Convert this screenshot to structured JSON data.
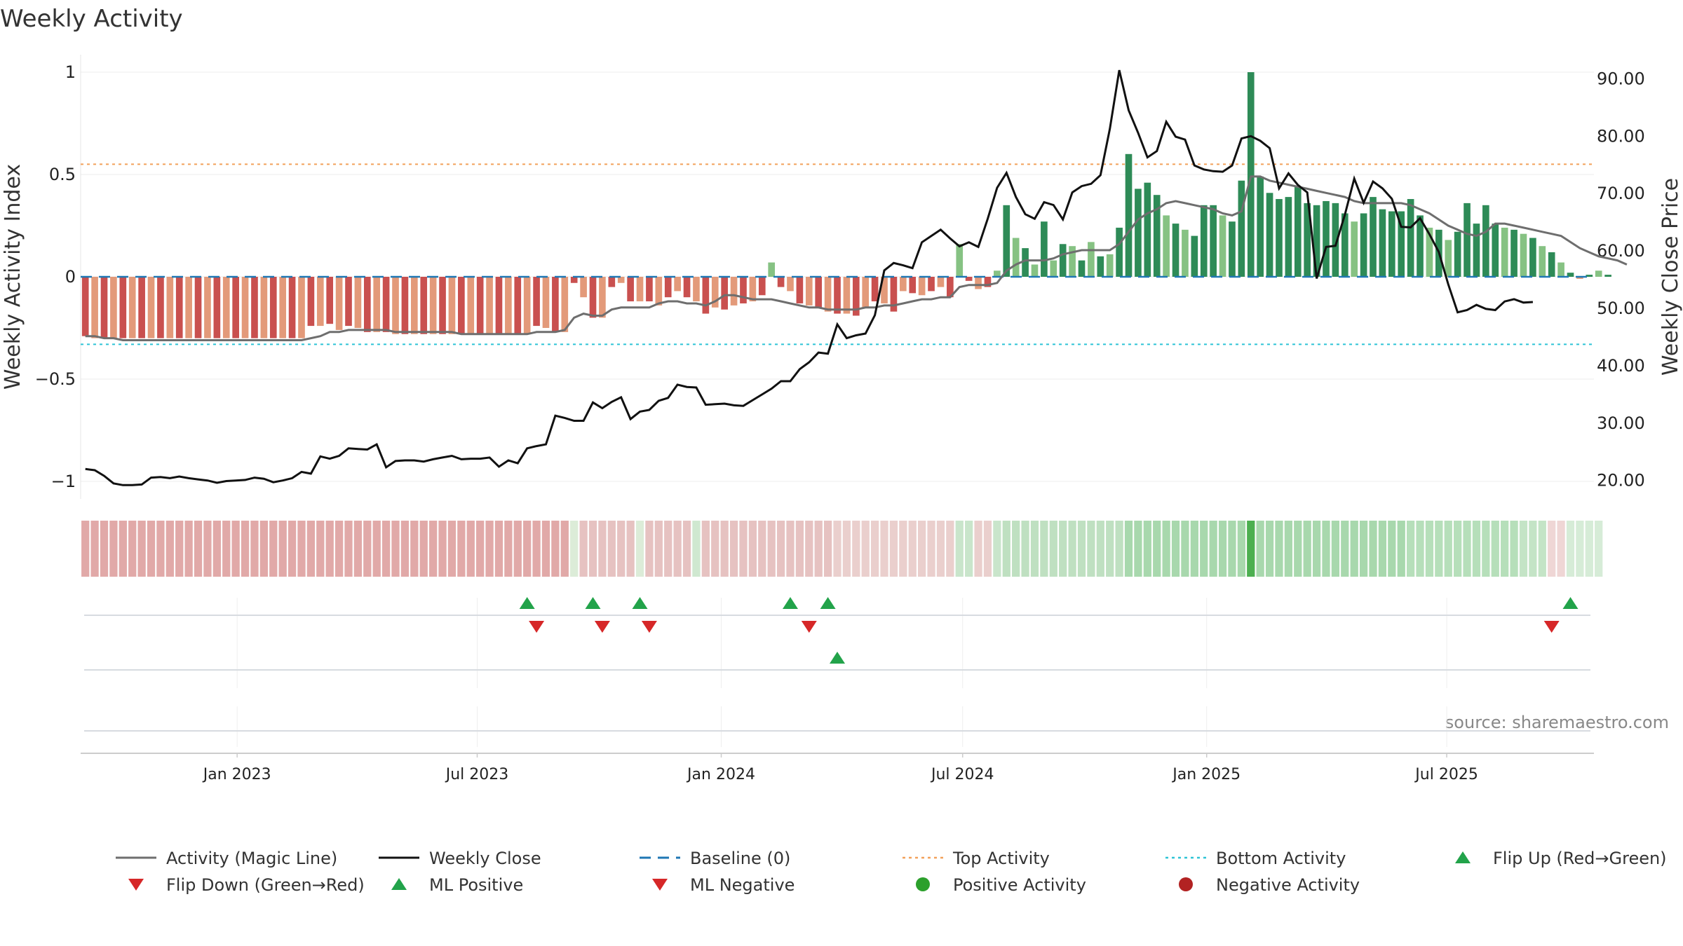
{
  "chart_data": {
    "type": "bar",
    "title": "Weekly Activity",
    "ylabel": "Weekly Activity Index",
    "y2label": "Weekly Close Price",
    "ylim": [
      -1.1,
      1.05
    ],
    "y2lim": [
      15.5,
      92.5
    ],
    "yticks": [
      {
        "value": 1,
        "label": "1"
      },
      {
        "value": 0.5,
        "label": "0.5"
      },
      {
        "value": 0,
        "label": "0"
      },
      {
        "value": -0.5,
        "label": "−0.5"
      },
      {
        "value": -1,
        "label": "−1"
      }
    ],
    "y2ticks": [
      {
        "value": 90,
        "label": "90.00"
      },
      {
        "value": 80,
        "label": "80.00"
      },
      {
        "value": 70,
        "label": "70.00"
      },
      {
        "value": 60,
        "label": "60.00"
      },
      {
        "value": 50,
        "label": "50.00"
      },
      {
        "value": 40,
        "label": "40.00"
      },
      {
        "value": 30,
        "label": "30.00"
      },
      {
        "value": 20,
        "label": "20.00"
      }
    ],
    "date_range": [
      "2022-09-05",
      "2025-10-20"
    ],
    "xticks": [
      {
        "date": "2023-01-01",
        "label": "Jan 2023"
      },
      {
        "date": "2023-07-01",
        "label": "Jul 2023"
      },
      {
        "date": "2024-01-01",
        "label": "Jan 2024"
      },
      {
        "date": "2024-07-01",
        "label": "Jul 2024"
      },
      {
        "date": "2025-01-01",
        "label": "Jan 2025"
      },
      {
        "date": "2025-07-01",
        "label": "Jul 2025"
      }
    ],
    "reference_lines": {
      "top_activity": 0.55,
      "bottom_activity": -0.33,
      "baseline": 0
    },
    "colors": {
      "neg_strong": "#c9504f",
      "neg_weak": "#e39a7a",
      "pos_strong": "#2e8b57",
      "pos_weak": "#86c283",
      "magic_line": "#6e6e6e",
      "close": "#111111",
      "baseline": "#1f77b4",
      "top": "#f2a15a",
      "bottom": "#2ec4d6",
      "flip_up": "#22a34a",
      "flip_down": "#d62728",
      "positive_dot": "#2ca02c",
      "negative_dot": "#b22222",
      "strip_neg": "#e1a9a8",
      "strip_pos": "#a8d8ad"
    },
    "weeks": 161,
    "series": [
      {
        "name": "Weekly Activity Index",
        "type": "bar",
        "values": [
          -0.29,
          -0.3,
          -0.3,
          -0.3,
          -0.3,
          -0.3,
          -0.3,
          -0.3,
          -0.3,
          -0.3,
          -0.3,
          -0.3,
          -0.3,
          -0.3,
          -0.3,
          -0.3,
          -0.3,
          -0.3,
          -0.3,
          -0.3,
          -0.3,
          -0.3,
          -0.3,
          -0.3,
          -0.24,
          -0.24,
          -0.23,
          -0.26,
          -0.24,
          -0.25,
          -0.27,
          -0.27,
          -0.27,
          -0.28,
          -0.28,
          -0.28,
          -0.28,
          -0.28,
          -0.28,
          -0.28,
          -0.28,
          -0.28,
          -0.28,
          -0.28,
          -0.28,
          -0.28,
          -0.28,
          -0.28,
          -0.24,
          -0.25,
          -0.27,
          -0.27,
          -0.03,
          -0.1,
          -0.2,
          -0.2,
          -0.05,
          -0.03,
          -0.12,
          -0.12,
          -0.12,
          -0.14,
          -0.1,
          -0.07,
          -0.1,
          -0.12,
          -0.18,
          -0.15,
          -0.16,
          -0.14,
          -0.13,
          -0.12,
          -0.09,
          0.07,
          -0.05,
          -0.07,
          -0.13,
          -0.14,
          -0.15,
          -0.17,
          -0.18,
          -0.18,
          -0.19,
          -0.15,
          -0.12,
          -0.13,
          -0.17,
          -0.07,
          -0.08,
          -0.09,
          -0.07,
          -0.05,
          -0.1,
          0.16,
          -0.02,
          -0.06,
          -0.05,
          0.03,
          0.35,
          0.19,
          0.14,
          0.06,
          0.27,
          0.08,
          0.16,
          0.15,
          0.08,
          0.17,
          0.1,
          0.11,
          0.24,
          0.6,
          0.43,
          0.46,
          0.4,
          0.3,
          0.26,
          0.23,
          0.2,
          0.35,
          0.35,
          0.3,
          0.27,
          0.47,
          1.0,
          0.49,
          0.41,
          0.38,
          0.39,
          0.44,
          0.36,
          0.35,
          0.37,
          0.36,
          0.31,
          0.27,
          0.31,
          0.39,
          0.33,
          0.32,
          0.32,
          0.38,
          0.3,
          0.24,
          0.23,
          0.18,
          0.22,
          0.36,
          0.26,
          0.35,
          0.26,
          0.24,
          0.23,
          0.21,
          0.19,
          0.15,
          0.12,
          0.07,
          0.02,
          -0.01,
          0.01,
          0.03,
          0.01
        ]
      },
      {
        "name": "Activity (Magic Line)",
        "type": "line",
        "values": [
          -0.29,
          -0.29,
          -0.3,
          -0.3,
          -0.31,
          -0.31,
          -0.31,
          -0.31,
          -0.31,
          -0.31,
          -0.31,
          -0.31,
          -0.31,
          -0.31,
          -0.31,
          -0.31,
          -0.31,
          -0.31,
          -0.31,
          -0.31,
          -0.31,
          -0.31,
          -0.31,
          -0.31,
          -0.3,
          -0.29,
          -0.27,
          -0.27,
          -0.26,
          -0.26,
          -0.26,
          -0.26,
          -0.26,
          -0.27,
          -0.27,
          -0.27,
          -0.27,
          -0.27,
          -0.27,
          -0.27,
          -0.28,
          -0.28,
          -0.28,
          -0.28,
          -0.28,
          -0.28,
          -0.28,
          -0.28,
          -0.27,
          -0.27,
          -0.27,
          -0.26,
          -0.2,
          -0.18,
          -0.19,
          -0.19,
          -0.16,
          -0.15,
          -0.15,
          -0.15,
          -0.15,
          -0.13,
          -0.12,
          -0.12,
          -0.13,
          -0.13,
          -0.14,
          -0.12,
          -0.09,
          -0.09,
          -0.1,
          -0.11,
          -0.11,
          -0.11,
          -0.12,
          -0.13,
          -0.14,
          -0.15,
          -0.15,
          -0.16,
          -0.16,
          -0.16,
          -0.16,
          -0.15,
          -0.15,
          -0.14,
          -0.14,
          -0.13,
          -0.12,
          -0.11,
          -0.11,
          -0.1,
          -0.1,
          -0.05,
          -0.04,
          -0.04,
          -0.04,
          -0.03,
          0.03,
          0.06,
          0.08,
          0.08,
          0.08,
          0.09,
          0.11,
          0.12,
          0.13,
          0.13,
          0.13,
          0.13,
          0.16,
          0.22,
          0.28,
          0.31,
          0.33,
          0.36,
          0.37,
          0.36,
          0.35,
          0.34,
          0.33,
          0.31,
          0.3,
          0.32,
          0.49,
          0.49,
          0.47,
          0.46,
          0.45,
          0.44,
          0.43,
          0.42,
          0.41,
          0.4,
          0.39,
          0.37,
          0.36,
          0.36,
          0.36,
          0.36,
          0.36,
          0.35,
          0.33,
          0.31,
          0.28,
          0.25,
          0.23,
          0.21,
          0.2,
          0.22,
          0.26,
          0.26,
          0.25,
          0.24,
          0.23,
          0.22,
          0.21,
          0.2,
          0.17,
          0.14,
          0.12,
          0.1,
          0.09,
          0.08,
          0.06
        ]
      },
      {
        "name": "Weekly Close",
        "type": "line",
        "axis": "right",
        "values": [
          22,
          21.8,
          20.8,
          19.5,
          19.2,
          19.2,
          19.3,
          20.5,
          20.6,
          20.4,
          20.7,
          20.4,
          20.2,
          20,
          19.6,
          19.9,
          20,
          20.1,
          20.5,
          20.3,
          19.7,
          20,
          20.4,
          21.5,
          21.2,
          24.2,
          23.8,
          24.3,
          25.6,
          25.5,
          25.4,
          26.3,
          22.3,
          23.4,
          23.5,
          23.5,
          23.3,
          23.7,
          24,
          24.3,
          23.7,
          23.8,
          23.8,
          24,
          22.4,
          23.5,
          23,
          25.6,
          26,
          26.3,
          31.3,
          30.9,
          30.4,
          30.4,
          33.6,
          32.6,
          33.7,
          34.5,
          30.7,
          32,
          32.3,
          33.9,
          34.4,
          36.7,
          36.3,
          36.2,
          33.2,
          33.3,
          33.4,
          33.1,
          33,
          34,
          35,
          36,
          37.3,
          37.3,
          39.4,
          40.6,
          42.3,
          42.1,
          47.2,
          44.8,
          45.3,
          45.6,
          48.8,
          56.6,
          57.9,
          57.5,
          57,
          61.5,
          62.6,
          63.7,
          62.2,
          60.8,
          61.5,
          60.7,
          65.6,
          71,
          73.6,
          69.4,
          66.4,
          65.6,
          68.5,
          68,
          65.5,
          70.2,
          71.3,
          71.7,
          73.2,
          81.3,
          91.5,
          84.5,
          80.6,
          76.3,
          77.4,
          82.5,
          79.9,
          79.4,
          74.9,
          74.2,
          73.9,
          73.8,
          74.9,
          79.6,
          80,
          79.2,
          77.9,
          70.9,
          73.5,
          71.5,
          70.2,
          55.2,
          60.7,
          60.9,
          66.3,
          72.6,
          68.4,
          72.1,
          70.9,
          69.1,
          64.2,
          64.1,
          65.7,
          62.9,
          59.8,
          54.2,
          49.3,
          49.7,
          50.6,
          49.9,
          49.7,
          51.2,
          51.6,
          51,
          51.1
        ]
      }
    ],
    "strip_colors": [
      "#e1a9a8",
      "#e1a9a8",
      "#e1a9a8",
      "#e1a9a8",
      "#e1a9a8",
      "#e1a9a8",
      "#e1a9a8",
      "#e1a9a8",
      "#e1a9a8",
      "#e1a9a8",
      "#e1a9a8",
      "#e1a9a8",
      "#e1a9a8",
      "#e1a9a8",
      "#e1a9a8",
      "#e1a9a8",
      "#e1a9a8",
      "#e1a9a8",
      "#e1a9a8",
      "#e1a9a8",
      "#e1a9a8",
      "#e1a9a8",
      "#e1a9a8",
      "#e1a9a8",
      "#e1a9a8",
      "#e1a9a8",
      "#e1a9a8",
      "#e1a9a8",
      "#e1a9a8",
      "#e1a9a8",
      "#e1a9a8",
      "#e1a9a8",
      "#e1a9a8",
      "#e1a9a8",
      "#e1a9a8",
      "#e1a9a8",
      "#e1a9a8",
      "#e1a9a8",
      "#e1a9a8",
      "#e1a9a8",
      "#e1a9a8",
      "#e1a9a8",
      "#e1a9a8",
      "#e1a9a8",
      "#e1a9a8",
      "#e1a9a8",
      "#e1a9a8",
      "#e1a9a8",
      "#e1a9a8",
      "#e1a9a8",
      "#e1a9a8",
      "#e1a9a8",
      "#dcecd8",
      "#e6c2c1",
      "#e6c2c1",
      "#e6c2c1",
      "#e6c2c1",
      "#e6c2c1",
      "#e6c2c1",
      "#dcecd8",
      "#e6c2c1",
      "#e6c2c1",
      "#e6c2c1",
      "#e6c2c1",
      "#e6c2c1",
      "#cfe8d0",
      "#e6c2c1",
      "#e6c2c1",
      "#e6c2c1",
      "#e6c2c1",
      "#e6c2c1",
      "#e6c2c1",
      "#e6c2c1",
      "#e6c2c1",
      "#e6c2c1",
      "#e6c2c1",
      "#e6c2c1",
      "#e6c2c1",
      "#e6c2c1",
      "#e6c2c1",
      "#eacfcd",
      "#eacfcd",
      "#eacfcd",
      "#eacfcd",
      "#eacfcd",
      "#eacfcd",
      "#eacfcd",
      "#eacfcd",
      "#eacfcd",
      "#eacfcd",
      "#eacfcd",
      "#eacfcd",
      "#eacfcd",
      "#c9e5cb",
      "#c9e5cb",
      "#eacfcd",
      "#eacfcd",
      "#c9e5cb",
      "#bfe0c1",
      "#bfe0c1",
      "#bfe0c1",
      "#bfe0c1",
      "#bfe0c1",
      "#bfe0c1",
      "#bfe0c1",
      "#bfe0c1",
      "#bfe0c1",
      "#bfe0c1",
      "#bfe0c1",
      "#bfe0c1",
      "#bfe0c1",
      "#a8d8ad",
      "#a8d8ad",
      "#a8d8ad",
      "#a8d8ad",
      "#a8d8ad",
      "#a8d8ad",
      "#a8d8ad",
      "#a8d8ad",
      "#a8d8ad",
      "#a8d8ad",
      "#a8d8ad",
      "#a8d8ad",
      "#a8d8ad",
      "#4caf50",
      "#a8d8ad",
      "#a8d8ad",
      "#a8d8ad",
      "#a8d8ad",
      "#a8d8ad",
      "#a8d8ad",
      "#a8d8ad",
      "#a8d8ad",
      "#a8d8ad",
      "#a8d8ad",
      "#a8d8ad",
      "#a8d8ad",
      "#a8d8ad",
      "#a8d8ad",
      "#a8d8ad",
      "#a8d8ad",
      "#b6dfba",
      "#b6dfba",
      "#b6dfba",
      "#b6dfba",
      "#b6dfba",
      "#b6dfba",
      "#b6dfba",
      "#b6dfba",
      "#b6dfba",
      "#b6dfba",
      "#b6dfba",
      "#b6dfba",
      "#c4e4c6",
      "#c4e4c6",
      "#c4e4c6",
      "#efd6d5",
      "#efd6d5",
      "#d6ecd7",
      "#d6ecd7",
      "#d6ecd7",
      "#d6ecd7"
    ],
    "events": {
      "flip_up": [
        47,
        54,
        59,
        75,
        79,
        158
      ],
      "flip_down": [
        48,
        55,
        60,
        77,
        156
      ],
      "ml_positive": [
        80
      ],
      "ml_negative": [],
      "positive_activity": [],
      "negative_activity": []
    },
    "legend": [
      {
        "key": "magic",
        "label": "Activity (Magic Line)",
        "symbol": "line"
      },
      {
        "key": "close",
        "label": "Weekly Close",
        "symbol": "line"
      },
      {
        "key": "baseline",
        "label": "Baseline (0)",
        "symbol": "dash"
      },
      {
        "key": "top",
        "label": "Top Activity",
        "symbol": "dot"
      },
      {
        "key": "bottom",
        "label": "Bottom Activity",
        "symbol": "dot"
      },
      {
        "key": "flipup",
        "label": "Flip Up (Red→Green)",
        "symbol": "tri-up"
      },
      {
        "key": "flipdown",
        "label": "Flip Down (Green→Red)",
        "symbol": "tri-down"
      },
      {
        "key": "mlpos",
        "label": "ML Positive",
        "symbol": "tri-up"
      },
      {
        "key": "mlneg",
        "label": "ML Negative",
        "symbol": "tri-down"
      },
      {
        "key": "posact",
        "label": "Positive Activity",
        "symbol": "circle"
      },
      {
        "key": "negact",
        "label": "Negative Activity",
        "symbol": "circle"
      }
    ]
  },
  "source": "source: sharemaestro.com"
}
